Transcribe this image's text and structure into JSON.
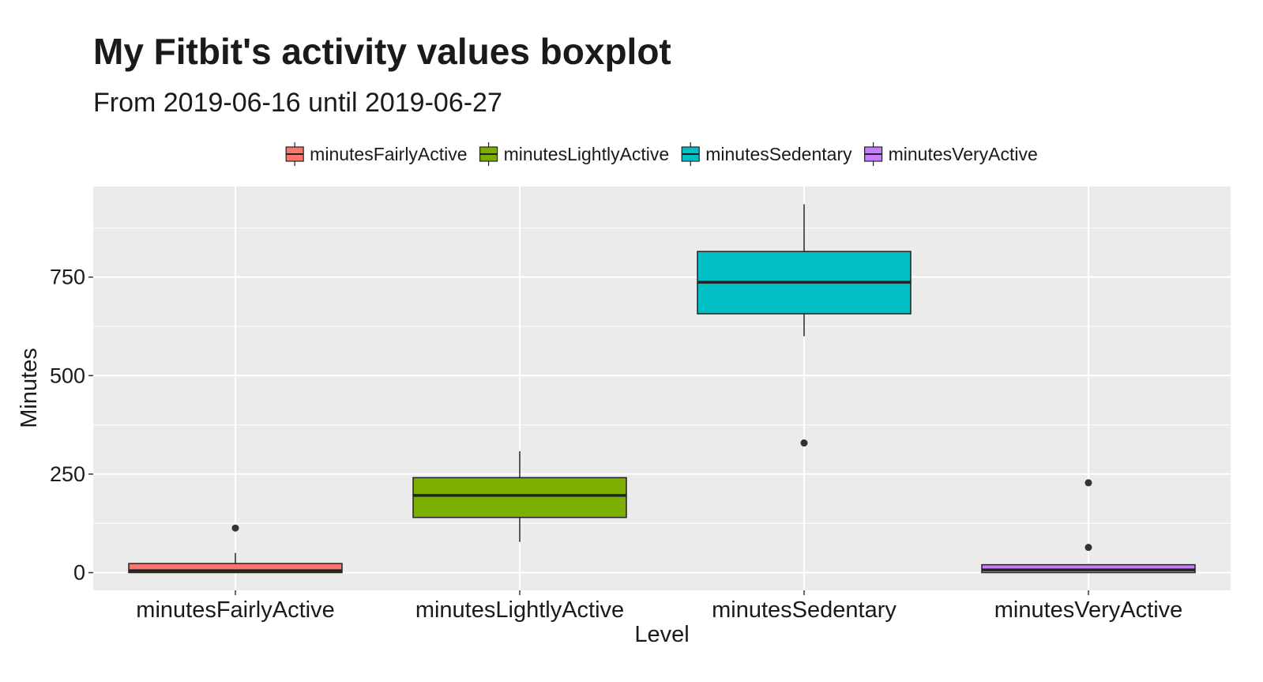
{
  "chart_data": {
    "type": "boxplot",
    "title": "My Fitbit's activity values boxplot",
    "subtitle": "From 2019-06-16 until 2019-06-27",
    "xlabel": "Level",
    "ylabel": "Minutes",
    "ylim": [
      -45,
      980
    ],
    "yticks": [
      0,
      250,
      500,
      750
    ],
    "ygrid_minor": [
      125,
      375,
      625,
      875
    ],
    "grid": true,
    "legend_position": "top",
    "categories": [
      "minutesFairlyActive",
      "minutesLightlyActive",
      "minutesSedentary",
      "minutesVeryActive"
    ],
    "series": [
      {
        "name": "minutesFairlyActive",
        "color": "#F8766D",
        "whisker_low": 0,
        "q1": 0,
        "median": 5,
        "q3": 23,
        "whisker_high": 50,
        "outliers": [
          113
        ]
      },
      {
        "name": "minutesLightlyActive",
        "color": "#7CAE00",
        "whisker_low": 78,
        "q1": 140,
        "median": 196,
        "q3": 241,
        "whisker_high": 308,
        "outliers": []
      },
      {
        "name": "minutesSedentary",
        "color": "#00BFC4",
        "whisker_low": 600,
        "q1": 657,
        "median": 737,
        "q3": 815,
        "whisker_high": 935,
        "outliers": [
          329
        ]
      },
      {
        "name": "minutesVeryActive",
        "color": "#C77CFF",
        "whisker_low": 0,
        "q1": 0,
        "median": 7,
        "q3": 20,
        "whisker_high": 22,
        "outliers": [
          64,
          228
        ]
      }
    ]
  }
}
